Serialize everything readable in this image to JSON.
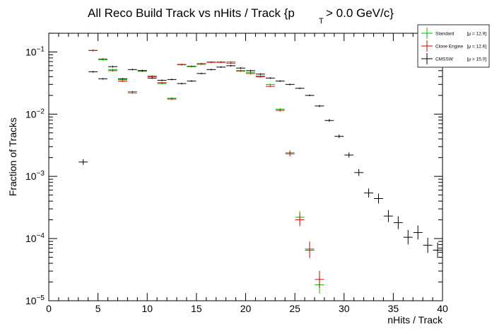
{
  "chart_data": {
    "type": "scatter",
    "title_main": "All Reco Build Track vs nHits / Track {p",
    "title_sub": "T",
    "title_end": " > 0.0 GeV/c}",
    "xlabel": "nHits / Track",
    "ylabel": "Fraction of Tracks",
    "xlim": [
      0,
      40
    ],
    "ylim": [
      1e-05,
      0.2
    ],
    "yscale": "log",
    "xticks": [
      0,
      5,
      10,
      15,
      20,
      25,
      30,
      35,
      40
    ],
    "yticks": [
      {
        "value": 0.1,
        "base": "10",
        "exp": "−1"
      },
      {
        "value": 0.01,
        "base": "10",
        "exp": "−2"
      },
      {
        "value": 0.001,
        "base": "10",
        "exp": "−3"
      },
      {
        "value": 0.0001,
        "base": "10",
        "exp": "−4"
      },
      {
        "value": 1e-05,
        "base": "10",
        "exp": "−5"
      }
    ],
    "legend_position": "top-right",
    "series": [
      {
        "name": "Standard",
        "legend_label": "Standard",
        "legend_stat": "[μ = 12.9]",
        "color": "#00bb00",
        "x": [
          4.5,
          5.5,
          6.5,
          7.5,
          8.5,
          9.5,
          10.5,
          11.5,
          12.5,
          13.5,
          14.5,
          15.5,
          16.5,
          17.5,
          18.5,
          19.5,
          20.5,
          21.5,
          22.5,
          23.5,
          24.5,
          25.5,
          26.5,
          27.5
        ],
        "y": [
          0.105,
          0.075,
          0.052,
          0.036,
          0.023,
          0.049,
          0.041,
          0.031,
          0.018,
          0.062,
          0.058,
          0.063,
          0.069,
          0.069,
          0.069,
          0.049,
          0.047,
          0.041,
          0.03,
          0.012,
          0.0024,
          0.00022,
          6.8e-05,
          1.8e-05
        ]
      },
      {
        "name": "Clone Engine",
        "legend_label": "Clone Engine",
        "legend_stat": "[μ = 12.6]",
        "color": "#dd0000",
        "x": [
          4.5,
          5.5,
          6.5,
          7.5,
          8.5,
          9.5,
          10.5,
          11.5,
          12.5,
          13.5,
          14.5,
          15.5,
          16.5,
          17.5,
          18.5,
          19.5,
          20.5,
          21.5,
          22.5,
          23.5,
          24.5,
          25.5,
          26.5,
          27.5
        ],
        "y": [
          0.106,
          0.077,
          0.05,
          0.034,
          0.022,
          0.05,
          0.04,
          0.032,
          0.0175,
          0.063,
          0.059,
          0.065,
          0.068,
          0.068,
          0.066,
          0.05,
          0.045,
          0.04,
          0.028,
          0.0115,
          0.0023,
          0.0002,
          6.5e-05,
          2.2e-05
        ]
      },
      {
        "name": "CMSSW",
        "legend_label": "CMSSW",
        "legend_stat": "[μ = 15.0]",
        "color": "#000000",
        "x": [
          3.5,
          4.5,
          5.5,
          6.5,
          7.5,
          8.5,
          9.5,
          10.5,
          11.5,
          12.5,
          13.5,
          14.5,
          15.5,
          16.5,
          17.5,
          18.5,
          19.5,
          20.5,
          21.5,
          22.5,
          23.5,
          24.5,
          25.5,
          26.5,
          27.5,
          28.5,
          29.5,
          30.5,
          31.5,
          32.5,
          33.5,
          34.5,
          35.5,
          36.5,
          37.5,
          38.5,
          39.5
        ],
        "y": [
          0.0017,
          0.048,
          0.037,
          0.058,
          0.037,
          0.052,
          0.05,
          0.038,
          0.035,
          0.036,
          0.031,
          0.034,
          0.045,
          0.052,
          0.057,
          0.06,
          0.055,
          0.05,
          0.044,
          0.038,
          0.034,
          0.03,
          0.026,
          0.02,
          0.0135,
          0.0079,
          0.0044,
          0.0022,
          0.00115,
          0.00054,
          0.00044,
          0.00023,
          0.00018,
          0.000105,
          0.000125,
          7.8e-05,
          6.5e-05
        ]
      }
    ]
  }
}
